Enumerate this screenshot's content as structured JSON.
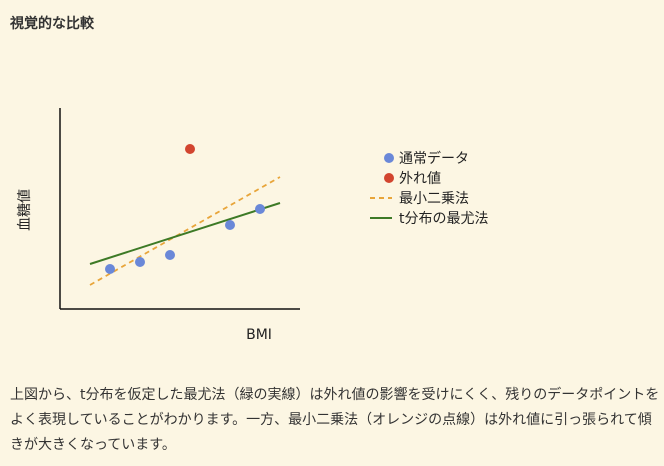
{
  "heading": "視覚的な比較",
  "caption": "上図から、t分布を仮定した最尤法（緑の実線）は外れ値の影響を受けにくく、残りのデータポイントをよく表現していることがわかります。一方、最小二乗法（オレンジの点線）は外れ値に引っ張られて傾きが大きくなっています。",
  "colors": {
    "background": "#fcf6e3",
    "normal_point": "#6a88d8",
    "outlier_point": "#d2452f",
    "ols_line": "#e8a53a",
    "t_line": "#3d7a26",
    "axis": "#111111"
  },
  "chart_data": {
    "type": "scatter",
    "xlabel": "BMI",
    "ylabel": "血糖値",
    "xlim": [
      0,
      10
    ],
    "ylim": [
      0,
      10
    ],
    "grid": false,
    "legend_position": "right",
    "series": [
      {
        "name": "通常データ",
        "kind": "points",
        "color": "#6a88d8",
        "x": [
          2.5,
          4.0,
          5.5,
          8.5,
          10.0
        ],
        "y": [
          2.0,
          2.35,
          2.7,
          4.2,
          5.0
        ]
      },
      {
        "name": "外れ値",
        "kind": "points",
        "color": "#d2452f",
        "x": [
          6.5
        ],
        "y": [
          8.0
        ]
      },
      {
        "name": "最小二乗法",
        "kind": "line",
        "style": "dashed",
        "color": "#e8a53a",
        "x": [
          1.5,
          11.0
        ],
        "y": [
          1.2,
          6.6
        ]
      },
      {
        "name": "t分布の最尤法",
        "kind": "line",
        "style": "solid",
        "color": "#3d7a26",
        "x": [
          1.5,
          11.0
        ],
        "y": [
          2.25,
          5.3
        ]
      }
    ]
  }
}
